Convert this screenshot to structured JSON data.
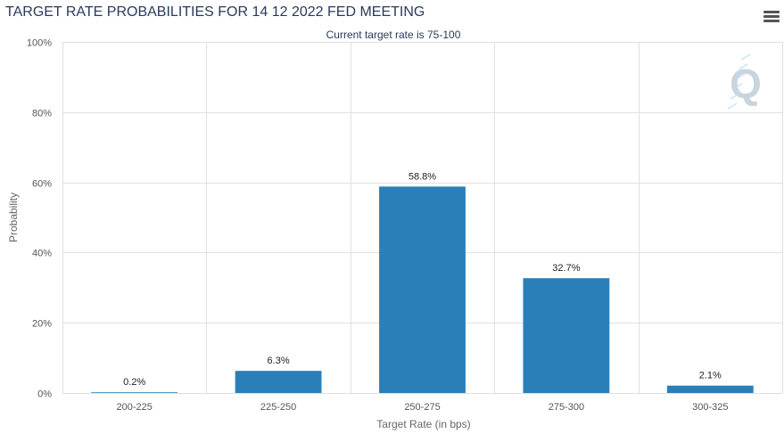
{
  "header": {
    "title": "TARGET RATE PROBABILITIES FOR 14 12 2022 FED MEETING",
    "menu_icon": "hamburger-menu-icon"
  },
  "watermark": {
    "icon": "q-logo-icon",
    "text": "Q"
  },
  "colors": {
    "bar": "#2b7fb8",
    "grid": "#e0e0e0",
    "title": "#2a3a5c",
    "watermark": "#c8d4de"
  },
  "chart_data": {
    "type": "bar",
    "title": "TARGET RATE PROBABILITIES FOR 14 12 2022 FED MEETING",
    "subtitle": "Current target rate is 75-100",
    "xlabel": "Target Rate (in bps)",
    "ylabel": "Probability",
    "categories": [
      "200-225",
      "225-250",
      "250-275",
      "275-300",
      "300-325"
    ],
    "values": [
      0.2,
      6.3,
      58.8,
      32.7,
      2.1
    ],
    "data_labels": [
      "0.2%",
      "6.3%",
      "58.8%",
      "32.7%",
      "2.1%"
    ],
    "ylim": [
      0,
      100
    ],
    "yticks": [
      0,
      20,
      40,
      60,
      80,
      100
    ],
    "ytick_labels": [
      "0%",
      "20%",
      "40%",
      "60%",
      "80%",
      "100%"
    ],
    "grid": true,
    "legend": "none"
  }
}
